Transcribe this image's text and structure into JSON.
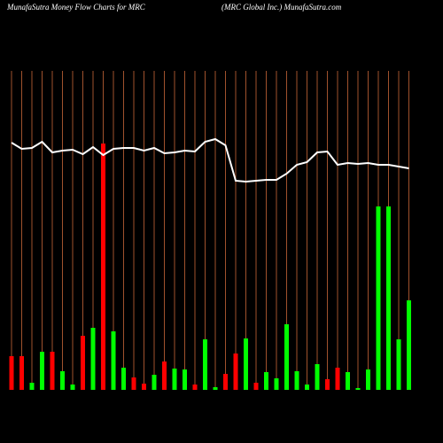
{
  "chart_data": {
    "type": "bar",
    "title": "MunafaSutra  Money Flow  Charts for MRC",
    "subtitle": "(MRC Global Inc.) MunafaSutra.com",
    "categories": [
      null,
      null,
      null,
      null,
      null,
      null,
      null,
      null,
      null,
      null,
      null,
      null,
      null,
      null,
      null,
      null,
      null,
      null,
      null,
      null,
      null,
      null,
      null,
      null,
      null,
      null,
      null,
      null,
      null,
      null,
      null,
      null,
      null,
      null,
      null,
      null,
      null,
      null,
      null,
      null
    ],
    "values": [
      38,
      38,
      8,
      43,
      43,
      21,
      6,
      61,
      70,
      278,
      66,
      25,
      14,
      7,
      17,
      32,
      24,
      23,
      6,
      57,
      3,
      18,
      41,
      58,
      8,
      20,
      13,
      74,
      21,
      6,
      29,
      12,
      25,
      20,
      2,
      23,
      207,
      207,
      57,
      101
    ],
    "colors": [
      "#ff0000",
      "#ff0000",
      "#00ff00",
      "#00ff00",
      "#ff0000",
      "#00ff00",
      "#00ff00",
      "#ff0000",
      "#00ff00",
      "#ff0000",
      "#00ff00",
      "#00ff00",
      "#ff0000",
      "#ff0000",
      "#00ff00",
      "#ff0000",
      "#00ff00",
      "#00ff00",
      "#ff0000",
      "#00ff00",
      "#00ff00",
      "#ff0000",
      "#ff0000",
      "#00ff00",
      "#ff0000",
      "#00ff00",
      "#00ff00",
      "#00ff00",
      "#00ff00",
      "#00ff00",
      "#00ff00",
      "#ff0000",
      "#ff0000",
      "#00ff00",
      "#00ff00",
      "#00ff00",
      "#00ff00",
      "#00ff00",
      "#00ff00",
      "#00ff00"
    ],
    "line": {
      "color": "#ffffff",
      "values": [
        279,
        272,
        273,
        280,
        268,
        270,
        271,
        266,
        274,
        265,
        272,
        273,
        273,
        270,
        273,
        267,
        268,
        270,
        269,
        280,
        283,
        276,
        236,
        235,
        236,
        237,
        237,
        244,
        254,
        257,
        268,
        269,
        254,
        256,
        255,
        256,
        254,
        254,
        252,
        250
      ]
    },
    "ylim": [
      0,
      360
    ],
    "gridline_color": "#a0522d"
  }
}
